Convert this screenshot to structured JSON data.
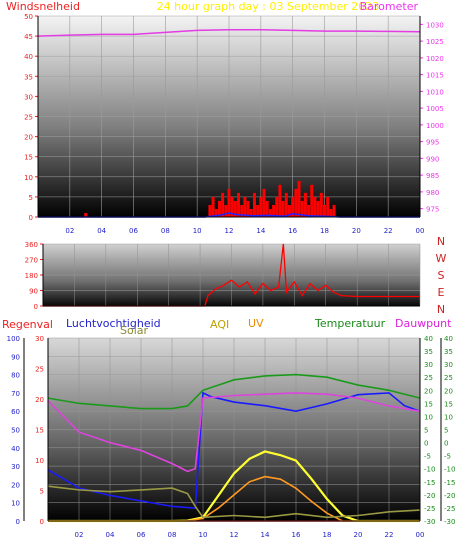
{
  "chart_data": [
    {
      "type": "bar",
      "panel": "wind-barometer",
      "title": "24 hour graph day : 03 September 2023",
      "left_label": "Windsnelheid",
      "right_label": "Barometer",
      "x_ticks": [
        "02",
        "04",
        "06",
        "08",
        "10",
        "12",
        "14",
        "16",
        "18",
        "20",
        "22",
        "00"
      ],
      "y_left_ticks": [
        "0",
        "5",
        "10",
        "15",
        "20",
        "25",
        "30",
        "35",
        "40",
        "45",
        "50"
      ],
      "y_left_range": [
        0,
        50
      ],
      "y_right_ticks": [
        "975",
        "980",
        "985",
        "990",
        "995",
        "1000",
        "1005",
        "1010",
        "1015",
        "1020",
        "1025",
        "1030"
      ],
      "y_right_range": [
        972.5,
        1032.5
      ],
      "grid": true,
      "series": [
        {
          "kind": "line",
          "color": "#e33de3",
          "x": [
            0,
            2,
            4,
            6,
            8,
            10,
            12,
            14,
            16,
            18,
            20,
            22,
            24
          ],
          "values": [
            1026.5,
            1026.8,
            1027.0,
            1027.0,
            1027.6,
            1028.2,
            1028.4,
            1028.4,
            1028.2,
            1028.0,
            1028.0,
            1027.9,
            1027.8
          ]
        },
        {
          "kind": "bar",
          "color": "#ff0000",
          "x": [
            3.0,
            10.8,
            11.0,
            11.2,
            11.4,
            11.6,
            11.8,
            12.0,
            12.2,
            12.4,
            12.6,
            12.8,
            13.0,
            13.2,
            13.4,
            13.6,
            13.8,
            14.0,
            14.2,
            14.4,
            14.6,
            14.8,
            15.0,
            15.2,
            15.4,
            15.6,
            15.8,
            16.0,
            16.2,
            16.4,
            16.6,
            16.8,
            17.0,
            17.2,
            17.4,
            17.6,
            17.8,
            18.0,
            18.2,
            18.4,
            18.6
          ],
          "values": [
            1,
            3,
            5,
            2,
            4,
            6,
            3,
            7,
            5,
            4,
            6,
            3,
            5,
            4,
            2,
            6,
            3,
            5,
            7,
            4,
            2,
            3,
            5,
            8,
            4,
            6,
            3,
            5,
            7,
            9,
            4,
            6,
            3,
            8,
            5,
            4,
            6,
            3,
            5,
            2,
            3
          ]
        },
        {
          "kind": "line",
          "color": "#2222ff",
          "x": [
            0,
            10.5,
            11.5,
            12.0,
            12.5,
            13.5,
            14.5,
            15.5,
            16.0,
            17.0,
            18.0,
            19.0,
            24
          ],
          "values": [
            0,
            0,
            0.5,
            1,
            0.6,
            0.3,
            0.4,
            0.2,
            0.8,
            0.3,
            0.2,
            0,
            0
          ]
        }
      ]
    },
    {
      "type": "line",
      "panel": "wind-direction",
      "y_ticks": [
        "0",
        "90",
        "180",
        "270",
        "360"
      ],
      "y_range": [
        0,
        360
      ],
      "right_labels": [
        "N",
        "W",
        "S",
        "E",
        "N"
      ],
      "grid": true,
      "series": [
        {
          "color": "#ff0000",
          "x": [
            0,
            10.3,
            10.5,
            11.0,
            11.5,
            12.0,
            12.5,
            13.0,
            13.5,
            14.0,
            14.5,
            15.0,
            15.3,
            15.5,
            16.0,
            16.5,
            17.0,
            17.5,
            18.0,
            18.5,
            19.0,
            20.0,
            22.0,
            24.0
          ],
          "values": [
            0,
            0,
            60,
            100,
            120,
            150,
            110,
            140,
            70,
            130,
            90,
            110,
            360,
            80,
            140,
            60,
            130,
            90,
            120,
            80,
            60,
            55,
            55,
            55
          ]
        }
      ]
    },
    {
      "type": "line",
      "panel": "rain-humidity-temp",
      "legend": [
        "Regenval",
        "Luchtvochtigheid",
        "Solar",
        "AQI",
        "UV",
        "Temperatuur",
        "Dauwpunt"
      ],
      "y_left1_ticks": [
        "0",
        "10",
        "20",
        "30",
        "40",
        "50",
        "60",
        "70",
        "80",
        "90",
        "100"
      ],
      "y_left1_range": [
        0,
        100
      ],
      "y_left2_ticks": [
        "0",
        "5",
        "10",
        "15",
        "20",
        "25",
        "30"
      ],
      "y_left2_range": [
        0,
        30
      ],
      "y_right1_ticks": [
        "-30",
        "-25",
        "-20",
        "-15",
        "-10",
        "-5",
        "0",
        "5",
        "10",
        "15",
        "20",
        "25",
        "30",
        "35",
        "40"
      ],
      "y_right1_range": [
        -30,
        40
      ],
      "y_right2_ticks": [
        "-30",
        "-25",
        "-20",
        "-15",
        "-10",
        "-5",
        "0",
        "5",
        "10",
        "15",
        "20",
        "25",
        "30",
        "35",
        "40"
      ],
      "y_right2_range": [
        -30,
        40
      ],
      "x_ticks": [
        "02",
        "04",
        "06",
        "08",
        "10",
        "12",
        "14",
        "16",
        "18",
        "20",
        "22",
        "00"
      ],
      "grid": true,
      "series": [
        {
          "name": "Luchtvochtigheid",
          "color": "#1a1aff",
          "x": [
            0,
            2,
            4,
            6,
            8,
            9.5,
            10,
            10.5,
            12,
            14,
            16,
            18,
            20,
            22,
            23,
            24
          ],
          "values": [
            28,
            18,
            14,
            11,
            8,
            7,
            70,
            68,
            65,
            63,
            60,
            64,
            69,
            70,
            63,
            60
          ]
        },
        {
          "name": "Dauwpunt",
          "color": "#dd44dd",
          "x": [
            0,
            2,
            4,
            6,
            8,
            9,
            9.5,
            10,
            12,
            14,
            16,
            18,
            20,
            22,
            24
          ],
          "values": [
            16,
            4,
            0,
            -3,
            -8,
            -11,
            -10,
            17,
            18,
            18.5,
            19,
            18.5,
            17,
            14,
            12
          ]
        },
        {
          "name": "Temperatuur",
          "color": "#1a9a1a",
          "x": [
            0,
            2,
            4,
            6,
            8,
            9,
            10,
            12,
            14,
            16,
            18,
            20,
            22,
            24
          ],
          "values": [
            17,
            15,
            14,
            13,
            13,
            14,
            20,
            24,
            25.5,
            26,
            25,
            22,
            20,
            17
          ]
        },
        {
          "name": "Regenval",
          "color": "#ff3333",
          "x": [
            0,
            24
          ],
          "values": [
            0,
            0
          ]
        },
        {
          "name": "Solar",
          "color": "#ffff33",
          "x": [
            0,
            8,
            9,
            10,
            11,
            12,
            13,
            14,
            15,
            16,
            17,
            18,
            19,
            20,
            24
          ],
          "values": [
            0,
            0,
            2,
            20,
            140,
            260,
            340,
            380,
            360,
            330,
            230,
            120,
            30,
            0,
            0
          ]
        },
        {
          "name": "UV",
          "color": "#ff9922",
          "x": [
            0,
            9,
            10,
            11,
            12,
            13,
            14,
            15,
            16,
            17,
            18,
            19,
            24
          ],
          "values": [
            0,
            0,
            0.2,
            1.0,
            2.0,
            3.0,
            3.4,
            3.2,
            2.5,
            1.5,
            0.6,
            0,
            0
          ]
        },
        {
          "name": "AQI",
          "color": "#999944",
          "x": [
            0,
            1,
            2,
            4,
            6,
            8,
            9,
            9.5,
            10,
            12,
            14,
            16,
            18,
            20,
            22,
            24
          ],
          "values": [
            19,
            18,
            17,
            16,
            17,
            18,
            15,
            8,
            2,
            3,
            2,
            4,
            2,
            3,
            5,
            6
          ]
        }
      ]
    }
  ]
}
